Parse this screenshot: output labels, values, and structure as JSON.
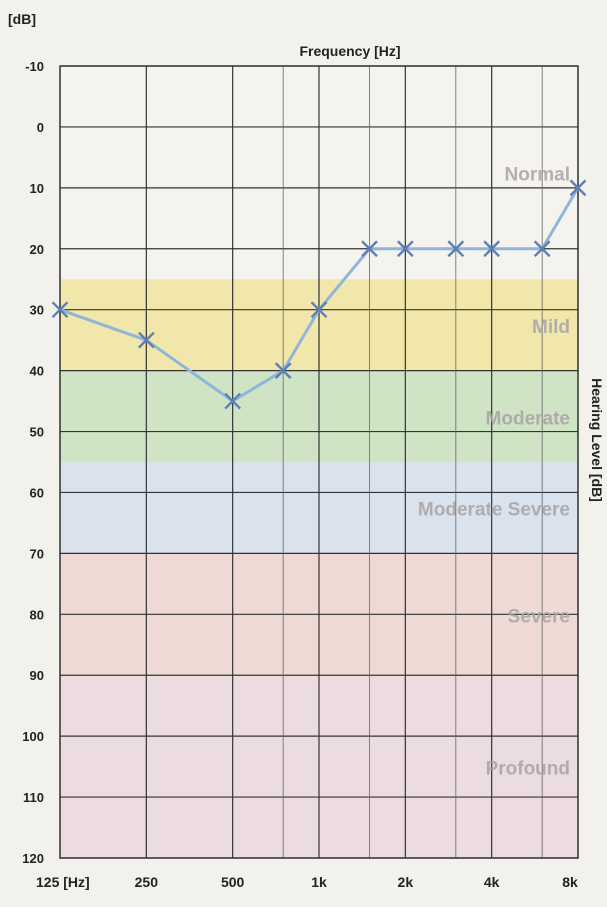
{
  "chart_data": {
    "type": "line",
    "title": "Frequency [Hz]",
    "ylabel": "Hearing Level [dB]",
    "yunit_label": "[dB]",
    "ylim": [
      -10,
      120
    ],
    "y_reversed": true,
    "yticks": [
      -10,
      0,
      10,
      20,
      30,
      40,
      50,
      60,
      70,
      80,
      90,
      100,
      110,
      120
    ],
    "x_ticks": [
      {
        "freq": 125,
        "label": "125 [Hz]"
      },
      {
        "freq": 250,
        "label": "250"
      },
      {
        "freq": 500,
        "label": "500"
      },
      {
        "freq": 1000,
        "label": "1k"
      },
      {
        "freq": 2000,
        "label": "2k"
      },
      {
        "freq": 4000,
        "label": "4k"
      },
      {
        "freq": 8000,
        "label": "8k"
      }
    ],
    "x_intermediate_lines": [
      750,
      1500,
      3000,
      6000
    ],
    "x_scale": "log",
    "grid": true,
    "marker": "x",
    "bands": [
      {
        "label": "Normal",
        "from": -10,
        "to": 25,
        "color": "#f4f3ee"
      },
      {
        "label": "Mild",
        "from": 25,
        "to": 40,
        "color": "#f1e7ab"
      },
      {
        "label": "Moderate",
        "from": 40,
        "to": 55,
        "color": "#cfe4c4"
      },
      {
        "label": "Moderate Severe",
        "from": 55,
        "to": 70,
        "color": "#dae3ed"
      },
      {
        "label": "Severe",
        "from": 70,
        "to": 90,
        "color": "#eed9d4"
      },
      {
        "label": "Profound",
        "from": 90,
        "to": 120,
        "color": "#ecdbe1"
      }
    ],
    "series": [
      {
        "color": "#8fb6da",
        "marker_color": "#5d7fb4",
        "points": [
          {
            "x": 125,
            "y": 30
          },
          {
            "x": 250,
            "y": 35
          },
          {
            "x": 500,
            "y": 45
          },
          {
            "x": 750,
            "y": 40
          },
          {
            "x": 1000,
            "y": 30
          },
          {
            "x": 1500,
            "y": 20
          },
          {
            "x": 2000,
            "y": 20
          },
          {
            "x": 3000,
            "y": 20
          },
          {
            "x": 4000,
            "y": 20
          },
          {
            "x": 6000,
            "y": 20
          },
          {
            "x": 8000,
            "y": 10
          }
        ]
      }
    ]
  }
}
